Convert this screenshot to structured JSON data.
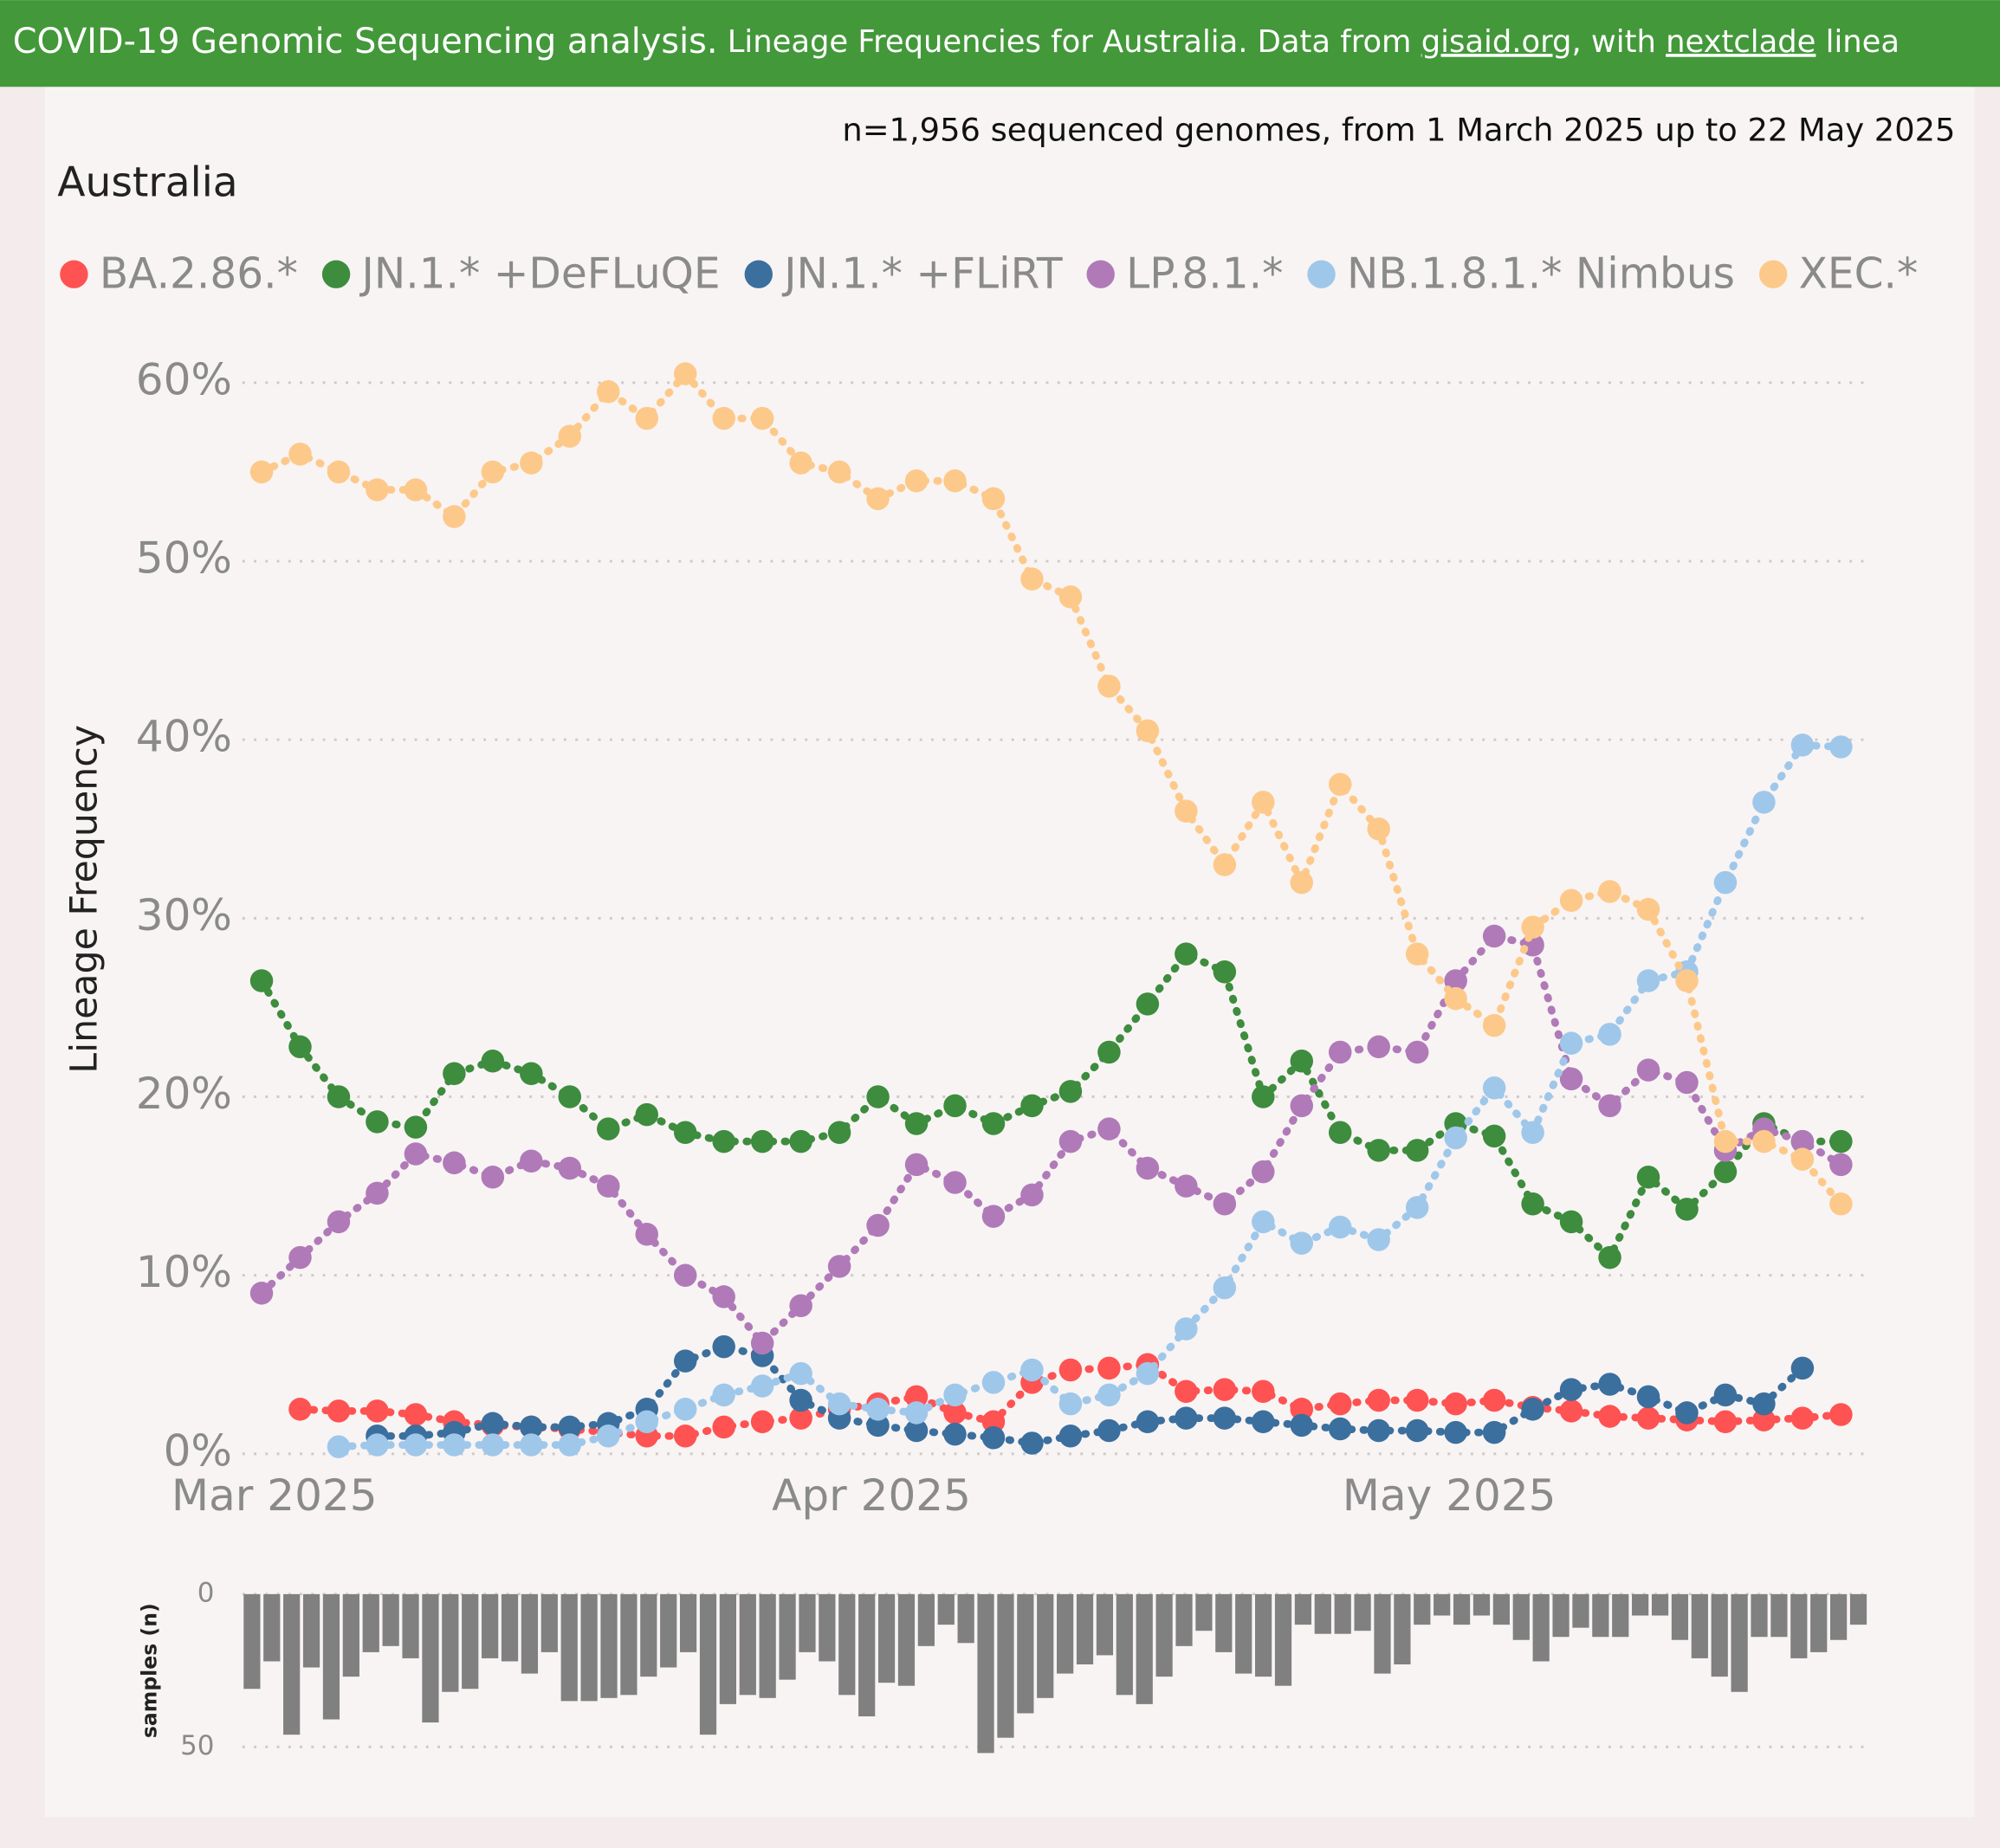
{
  "header": {
    "lead": "COVID-19 Genomic Sequencing analysis.",
    "text1": " Lineage Frequencies for Australia. Data from ",
    "link1": "gisaid.org",
    "text2": ", with ",
    "link2": "nextclade",
    "text3": " linea"
  },
  "chart_data": [
    {
      "type": "line",
      "title": "Australia",
      "subtitle": "n=1,956 sequenced genomes, from 1 March 2025 up to 22 May 2025",
      "y_label": "Lineage Frequency",
      "legend": "top",
      "grid": true,
      "xlim": [
        "2025-02-28",
        "2025-05-24"
      ],
      "xticks": [
        {
          "value": "2025-03-01",
          "label": "Mar 2025"
        },
        {
          "value": "2025-04-01",
          "label": "Apr 2025"
        },
        {
          "value": "2025-05-01",
          "label": "May 2025"
        }
      ],
      "ylim": [
        0,
        62
      ],
      "yticks": [
        {
          "value": 0,
          "label": "0%"
        },
        {
          "value": 10,
          "label": "10%"
        },
        {
          "value": 20,
          "label": "20%"
        },
        {
          "value": 30,
          "label": "30%"
        },
        {
          "value": 40,
          "label": "40%"
        },
        {
          "value": 50,
          "label": "50%"
        },
        {
          "value": 60,
          "label": "60%"
        }
      ],
      "x": [
        "2025-03-01",
        "2025-03-03",
        "2025-03-05",
        "2025-03-07",
        "2025-03-09",
        "2025-03-11",
        "2025-03-13",
        "2025-03-15",
        "2025-03-17",
        "2025-03-19",
        "2025-03-21",
        "2025-03-23",
        "2025-03-25",
        "2025-03-27",
        "2025-03-29",
        "2025-03-31",
        "2025-04-02",
        "2025-04-04",
        "2025-04-06",
        "2025-04-08",
        "2025-04-10",
        "2025-04-12",
        "2025-04-14",
        "2025-04-16",
        "2025-04-18",
        "2025-04-20",
        "2025-04-22",
        "2025-04-24",
        "2025-04-26",
        "2025-04-28",
        "2025-04-30",
        "2025-05-02",
        "2025-05-04",
        "2025-05-06",
        "2025-05-08",
        "2025-05-10",
        "2025-05-12",
        "2025-05-14",
        "2025-05-16",
        "2025-05-18",
        "2025-05-20",
        "2025-05-22"
      ],
      "series": [
        {
          "name": "BA.2.86.*",
          "color": "#ff5252",
          "values": [
            null,
            2.5,
            2.4,
            2.4,
            2.2,
            1.8,
            1.6,
            1.5,
            1.4,
            1.2,
            1,
            1,
            1.5,
            1.8,
            2,
            2.5,
            2.8,
            3.2,
            2.3,
            1.8,
            4,
            4.7,
            4.8,
            5,
            3.5,
            3.6,
            3.5,
            2.5,
            2.8,
            3,
            3,
            2.8,
            3,
            2.6,
            2.4,
            2.1,
            2,
            1.9,
            1.8,
            1.9,
            2,
            2.2
          ]
        },
        {
          "name": "JN.1.* +DeFLuQE",
          "color": "#3e8c3e",
          "values": [
            26.5,
            22.8,
            20,
            18.6,
            18.3,
            21.3,
            22,
            21.3,
            20,
            18.2,
            19,
            18,
            17.5,
            17.5,
            17.5,
            18,
            20,
            18.5,
            19.5,
            18.5,
            19.5,
            20.3,
            22.5,
            25.2,
            28,
            27,
            20,
            22,
            18,
            17,
            17,
            18.5,
            17.8,
            14,
            13,
            11,
            15.5,
            13.7,
            15.8,
            18.5,
            17.5,
            17.5
          ]
        },
        {
          "name": "JN.1.* +FLiRT",
          "color": "#3b6f9e",
          "values": [
            null,
            null,
            null,
            1,
            1,
            1.2,
            1.7,
            1.5,
            1.5,
            1.7,
            2.5,
            5.2,
            6,
            5.5,
            3,
            2,
            1.6,
            1.3,
            1.1,
            0.9,
            0.6,
            1,
            1.3,
            1.8,
            2,
            2,
            1.8,
            1.6,
            1.4,
            1.3,
            1.3,
            1.2,
            1.2,
            2.5,
            3.6,
            3.9,
            3.2,
            2.3,
            3.3,
            2.8,
            4.8,
            null
          ]
        },
        {
          "name": "LP.8.1.*",
          "color": "#b07ab8",
          "values": [
            9,
            11,
            13,
            14.6,
            16.8,
            16.3,
            15.5,
            16.4,
            16,
            15,
            12.3,
            10,
            8.8,
            6.2,
            8.3,
            10.5,
            12.8,
            16.2,
            15.2,
            13.3,
            14.5,
            17.5,
            18.2,
            16,
            15,
            14,
            15.8,
            19.5,
            22.5,
            22.8,
            22.5,
            26.5,
            29,
            28.5,
            21,
            19.5,
            21.5,
            20.8,
            17,
            18.2,
            17.5,
            16.2
          ]
        },
        {
          "name": "NB.1.8.1.* Nimbus",
          "color": "#9fc7ea",
          "values": [
            null,
            null,
            0.4,
            0.5,
            0.5,
            0.5,
            0.5,
            0.5,
            0.5,
            1,
            1.8,
            2.5,
            3.3,
            3.8,
            4.5,
            2.8,
            2.5,
            2.3,
            3.3,
            4,
            4.7,
            2.8,
            3.3,
            4.5,
            7,
            9.3,
            13,
            11.8,
            12.7,
            12,
            13.8,
            17.7,
            20.5,
            18,
            23,
            23.5,
            26.5,
            27,
            32,
            36.5,
            39.7,
            39.6
          ]
        },
        {
          "name": "XEC.*",
          "color": "#fdc98a",
          "values": [
            55,
            56,
            55,
            54,
            54,
            52.5,
            55,
            55.5,
            57,
            59.5,
            58,
            60.5,
            58,
            58,
            55.5,
            55,
            53.5,
            54.5,
            54.5,
            53.5,
            49,
            48,
            43,
            40.5,
            36,
            33,
            36.5,
            32,
            37.5,
            35,
            28,
            25.5,
            24,
            29.5,
            31,
            31.5,
            30.5,
            26.5,
            17.5,
            17.5,
            16.5,
            14
          ]
        }
      ]
    },
    {
      "type": "bar",
      "y_label": "samples (n)",
      "color": "#808080",
      "inverted": true,
      "grid": true,
      "ylim": [
        0,
        53
      ],
      "yticks": [
        0,
        50
      ],
      "values": [
        31,
        22,
        46,
        24,
        41,
        27,
        19,
        17,
        21,
        42,
        32,
        31,
        21,
        22,
        26,
        19,
        35,
        35,
        34,
        33,
        27,
        24,
        19,
        46,
        36,
        33,
        34,
        28,
        19,
        22,
        33,
        40,
        29,
        30,
        17,
        10,
        16,
        52,
        47,
        39,
        34,
        26,
        23,
        20,
        33,
        36,
        27,
        17,
        12,
        19,
        26,
        27,
        30,
        10,
        13,
        13,
        12,
        26,
        23,
        10,
        7,
        10,
        7,
        10,
        15,
        22,
        14,
        11,
        14,
        14,
        7,
        7,
        15,
        21,
        27,
        32,
        14,
        14,
        21,
        19,
        15,
        10
      ]
    }
  ]
}
